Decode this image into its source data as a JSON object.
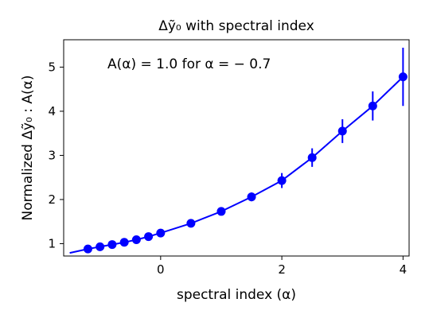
{
  "chart_data": {
    "type": "scatter",
    "title": "Δỹ₀ with spectral index",
    "xlabel": "spectral index (α)",
    "ylabel": "Normalized Δỹ₀ : A(α)",
    "annotation": "A(α) = 1.0 for α = − 0.7",
    "xlim": [
      -1.6,
      4.1
    ],
    "ylim": [
      0.72,
      5.62
    ],
    "xticks": [
      0,
      2,
      4
    ],
    "yticks": [
      1,
      2,
      3,
      4,
      5
    ],
    "grid": false,
    "series": [
      {
        "kind": "points-with-errorbars",
        "color": "#0000ff",
        "points": [
          {
            "x": -1.2,
            "y": 0.88,
            "err": 0.03
          },
          {
            "x": -1.0,
            "y": 0.93,
            "err": 0.03
          },
          {
            "x": -0.8,
            "y": 0.98,
            "err": 0.03
          },
          {
            "x": -0.6,
            "y": 1.03,
            "err": 0.03
          },
          {
            "x": -0.4,
            "y": 1.09,
            "err": 0.03
          },
          {
            "x": -0.2,
            "y": 1.16,
            "err": 0.03
          },
          {
            "x": 0.0,
            "y": 1.24,
            "err": 0.04
          },
          {
            "x": 0.5,
            "y": 1.46,
            "err": 0.05
          },
          {
            "x": 1.0,
            "y": 1.73,
            "err": 0.07
          },
          {
            "x": 1.5,
            "y": 2.06,
            "err": 0.1
          },
          {
            "x": 2.0,
            "y": 2.43,
            "err": 0.17
          },
          {
            "x": 2.5,
            "y": 2.95,
            "err": 0.21
          },
          {
            "x": 3.0,
            "y": 3.55,
            "err": 0.27
          },
          {
            "x": 3.5,
            "y": 4.12,
            "err": 0.33
          },
          {
            "x": 4.0,
            "y": 4.78,
            "err": 0.66
          }
        ]
      },
      {
        "kind": "curve",
        "color": "#0000ff",
        "x": [
          -1.5,
          -1.2,
          -1.0,
          -0.8,
          -0.6,
          -0.4,
          -0.2,
          0.0,
          0.5,
          1.0,
          1.5,
          2.0,
          2.5,
          3.0,
          3.5,
          4.0
        ],
        "y": [
          0.79,
          0.88,
          0.93,
          0.98,
          1.03,
          1.09,
          1.16,
          1.24,
          1.46,
          1.73,
          2.06,
          2.43,
          2.95,
          3.55,
          4.12,
          4.78
        ]
      }
    ]
  }
}
